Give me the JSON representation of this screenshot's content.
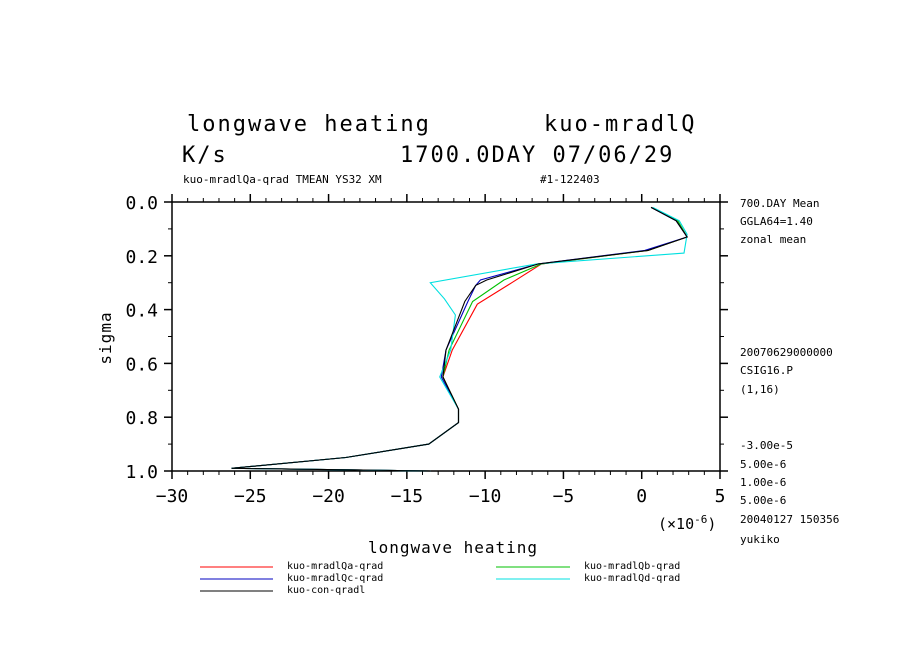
{
  "title_line1_left": "longwave heating",
  "title_line1_right": "kuo-mradlQ",
  "title_line2_left": "K/s",
  "title_line2_right": "1700.0DAY 07/06/29",
  "subtitle_left": "kuo-mradlQa-qrad TMEAN YS32 XM",
  "subtitle_right": "#1-122403",
  "right_notes_top": [
    "700.DAY Mean",
    "GGLA64=1.40",
    "zonal mean"
  ],
  "right_notes_mid": [
    "20070629000000",
    "CSIG16.P",
    "(1,16)"
  ],
  "right_notes_bottom": [
    "-3.00e-5",
    "5.00e-6",
    "1.00e-6",
    "5.00e-6",
    "20040127 150356",
    "yukiko"
  ],
  "chart_data": {
    "type": "line",
    "xlabel": "longwave heating",
    "ylabel": "sigma",
    "x_scale_label": "(×10",
    "x_scale_exp": "-6",
    "x_scale_close": ")",
    "xlim": [
      -30,
      5
    ],
    "ylim": [
      1.0,
      0.0
    ],
    "xticks": [
      -30,
      -25,
      -20,
      -15,
      -10,
      -5,
      0,
      5
    ],
    "xtick_labels": [
      "−30",
      "−25",
      "−20",
      "−15",
      "−10",
      "−5",
      "0",
      "5"
    ],
    "yticks": [
      0.0,
      0.2,
      0.4,
      0.6,
      0.8,
      1.0
    ],
    "ytick_labels": [
      "0.0",
      "0.2",
      "0.4",
      "0.6",
      "0.8",
      "1.0"
    ],
    "grid": false,
    "legend_position": "below",
    "series": [
      {
        "name": "kuo-mradlQa-qrad",
        "color": "#ff0000",
        "x": [
          0.6,
          2.3,
          2.9,
          0.4,
          -6.4,
          -8.3,
          -10.5,
          -12.1,
          -12.7,
          -11.7,
          -11.7,
          -13.6,
          -18.9,
          -26.2,
          -13.5
        ],
        "y": [
          0.02,
          0.07,
          0.13,
          0.18,
          0.23,
          0.3,
          0.38,
          0.55,
          0.65,
          0.77,
          0.82,
          0.9,
          0.95,
          0.99,
          1.0
        ]
      },
      {
        "name": "kuo-mradlQb-qrad",
        "color": "#00c000",
        "x": [
          0.6,
          2.3,
          2.9,
          0.4,
          -6.4,
          -8.8,
          -10.8,
          -12.3,
          -12.7,
          -11.7,
          -11.7,
          -13.6,
          -18.9,
          -26.2,
          -13.5
        ],
        "y": [
          0.02,
          0.07,
          0.13,
          0.18,
          0.23,
          0.29,
          0.37,
          0.55,
          0.65,
          0.77,
          0.82,
          0.9,
          0.95,
          0.99,
          1.0
        ]
      },
      {
        "name": "kuo-mradlQc-qrad",
        "color": "#0000c0",
        "x": [
          0.6,
          2.2,
          2.9,
          0.2,
          -6.6,
          -10.3,
          -10.6,
          -11.1,
          -12.5,
          -12.8,
          -11.7,
          -11.7,
          -13.6,
          -18.9,
          -26.2,
          -13.5
        ],
        "y": [
          0.02,
          0.07,
          0.13,
          0.18,
          0.23,
          0.29,
          0.31,
          0.37,
          0.55,
          0.65,
          0.77,
          0.82,
          0.9,
          0.95,
          0.99,
          1.0
        ]
      },
      {
        "name": "kuo-mradlQd-qrad",
        "color": "#00e0e0",
        "x": [
          0.7,
          2.4,
          2.9,
          2.7,
          -6.7,
          -13.5,
          -12.6,
          -11.9,
          -12.2,
          -12.9,
          -11.7,
          -11.7,
          -13.6,
          -18.9,
          -26.2,
          -13.5
        ],
        "y": [
          0.02,
          0.07,
          0.12,
          0.19,
          0.23,
          0.3,
          0.36,
          0.42,
          0.55,
          0.65,
          0.77,
          0.82,
          0.9,
          0.95,
          0.99,
          1.0
        ]
      },
      {
        "name": "kuo-con-qradl",
        "color": "#000000",
        "x": [
          0.6,
          2.2,
          2.9,
          0.4,
          -6.6,
          -9.9,
          -10.6,
          -11.3,
          -12.5,
          -12.7,
          -11.7,
          -11.7,
          -13.6,
          -18.9,
          -26.2,
          -13.5
        ],
        "y": [
          0.02,
          0.07,
          0.13,
          0.18,
          0.23,
          0.29,
          0.31,
          0.37,
          0.55,
          0.65,
          0.77,
          0.82,
          0.9,
          0.95,
          0.99,
          1.0
        ]
      }
    ]
  }
}
